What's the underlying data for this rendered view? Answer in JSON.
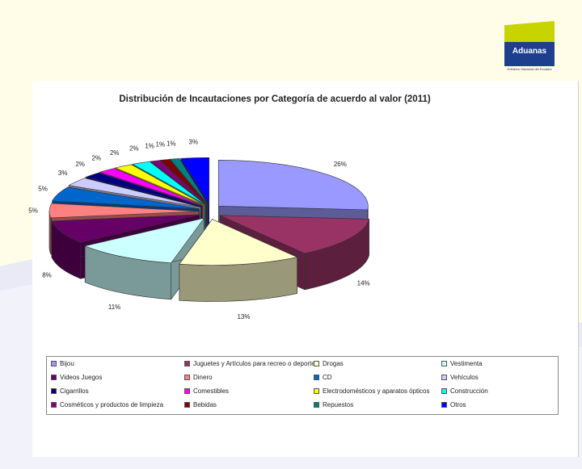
{
  "logo": {
    "name": "Aduanas",
    "tagline": "Gobierno Nacional del Ecuador"
  },
  "chart_data": {
    "type": "pie",
    "title": "Distribución de Incautaciones por Categoría de acuerdo al valor (2011)",
    "labels": [
      "Bijou",
      "Juguetes y Artículos para recreo o deporte",
      "Drogas",
      "Vestimenta",
      "Videos Juegos",
      "Dinero",
      "CD",
      "Vehículos",
      "Cigarrillos",
      "Comestibles",
      "Electrodomésticos y aparatos ópticos",
      "Construcción",
      "Cosméticos y productos de limpieza",
      "Bebidas",
      "Repuestos",
      "Otros"
    ],
    "values": [
      26,
      14,
      13,
      11,
      8,
      5,
      5,
      3,
      2,
      2,
      2,
      2,
      1,
      1,
      1,
      3
    ],
    "value_labels": [
      "26%",
      "14%",
      "13%",
      "11%",
      "8%",
      "5%",
      "5%",
      "3%",
      "2%",
      "2%",
      "2%",
      "2%",
      "1%",
      "1%",
      "1%",
      "3%"
    ],
    "colors": [
      "#9999ff",
      "#993366",
      "#ffffcc",
      "#ccffff",
      "#660066",
      "#ff8080",
      "#0066cc",
      "#ccccff",
      "#000080",
      "#ff00ff",
      "#ffff00",
      "#00ffff",
      "#800080",
      "#800000",
      "#008080",
      "#0000ff"
    ],
    "legend_position": "bottom",
    "exploded": true,
    "three_d": true
  }
}
